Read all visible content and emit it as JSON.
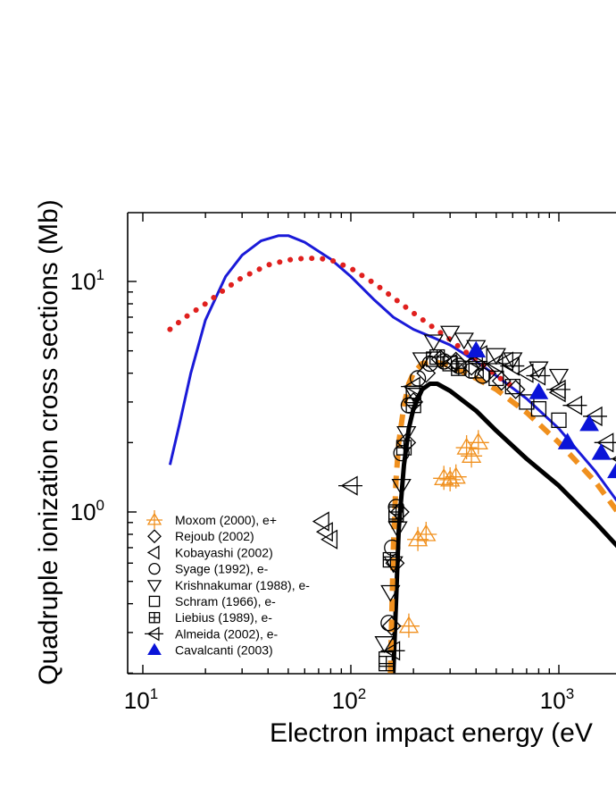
{
  "chart_data": {
    "type": "scatter",
    "xlabel": "Electron impact energy (eV",
    "ylabel": "Quadruple ionization cross sections (Mb)",
    "x_scale": "log",
    "y_scale": "log",
    "xlim": [
      8.5,
      2000
    ],
    "ylim": [
      0.2,
      20
    ],
    "x_ticks": [
      {
        "value": 10,
        "base": "10",
        "exp": "1"
      },
      {
        "value": 100,
        "base": "10",
        "exp": "2"
      },
      {
        "value": 1000,
        "base": "10",
        "exp": "3"
      }
    ],
    "y_ticks": [
      {
        "value": 1,
        "base": "10",
        "exp": "0"
      },
      {
        "value": 10,
        "base": "10",
        "exp": "1"
      }
    ],
    "legend": [
      {
        "label": "Moxom (2000), e+",
        "marker": "triangle-up-cross",
        "color": "#f0901e"
      },
      {
        "label": "Rejoub (2002)",
        "marker": "diamond",
        "color": "#000000"
      },
      {
        "label": "Kobayashi (2002)",
        "marker": "triangle-left",
        "color": "#000000"
      },
      {
        "label": "Syage (1992), e-",
        "marker": "circle",
        "color": "#000000"
      },
      {
        "label": "Krishnakumar (1988), e-",
        "marker": "triangle-down",
        "color": "#000000"
      },
      {
        "label": "Schram (1966), e-",
        "marker": "square",
        "color": "#000000"
      },
      {
        "label": "Liebius (1989), e-",
        "marker": "square-plus",
        "color": "#000000"
      },
      {
        "label": "Almeida (2002), e-",
        "marker": "triangle-left-cross",
        "color": "#000000"
      },
      {
        "label": "Cavalcanti (2003)",
        "marker": "triangle-up-filled",
        "color": "#0a14d8"
      }
    ],
    "curves": [
      {
        "name": "blue-solid-curve",
        "color": "#1a1ad8",
        "style": "solid",
        "x": [
          13.5,
          15,
          17,
          20,
          25,
          30,
          37,
          45,
          50,
          60,
          80,
          100,
          130,
          160,
          200,
          250,
          300,
          400,
          500,
          700,
          1000,
          1500,
          2000
        ],
        "y": [
          1.6,
          2.4,
          4.0,
          6.8,
          10.5,
          13.0,
          15.0,
          15.8,
          15.8,
          14.8,
          12.5,
          10.5,
          8.3,
          7.0,
          6.2,
          5.7,
          5.3,
          4.5,
          3.9,
          3.1,
          2.3,
          1.5,
          1.05
        ]
      },
      {
        "name": "red-dotted-curve",
        "color": "#e0201e",
        "style": "dotted",
        "x": [
          13.5,
          16,
          20,
          25,
          30,
          40,
          50,
          60,
          70,
          80,
          100,
          130,
          160,
          200,
          250,
          300,
          350,
          400,
          500,
          600
        ],
        "y": [
          6.2,
          7.0,
          8.0,
          9.3,
          10.4,
          11.8,
          12.4,
          12.6,
          12.6,
          12.4,
          11.4,
          9.8,
          8.5,
          7.3,
          6.3,
          5.6,
          5.0,
          4.6,
          3.9,
          3.5
        ]
      },
      {
        "name": "black-thick-curve",
        "color": "#000000",
        "style": "solid",
        "x": [
          160,
          170,
          180,
          190,
          200,
          220,
          240,
          260,
          300,
          400,
          500,
          700,
          1000,
          1500,
          2000
        ],
        "y": [
          0.2,
          0.85,
          1.6,
          2.3,
          2.8,
          3.4,
          3.6,
          3.6,
          3.35,
          2.75,
          2.25,
          1.7,
          1.3,
          0.9,
          0.68
        ]
      },
      {
        "name": "orange-dashed-curve",
        "color": "#f0901e",
        "style": "dashed",
        "x": [
          155,
          160,
          165,
          170,
          180,
          190,
          200,
          220,
          250,
          300,
          400,
          500,
          700,
          1000,
          1500,
          2000
        ],
        "y": [
          0.2,
          0.7,
          1.4,
          2.0,
          2.9,
          3.6,
          4.0,
          4.4,
          4.5,
          4.3,
          3.8,
          3.4,
          2.7,
          2.0,
          1.35,
          0.95
        ]
      }
    ],
    "series": [
      {
        "name": "Moxom (2000), e+",
        "marker": "triangle-up-cross",
        "color": "#f0901e",
        "x": [
          190,
          210,
          230,
          280,
          300,
          320,
          360,
          380,
          410
        ],
        "y": [
          0.32,
          0.76,
          0.8,
          1.4,
          1.38,
          1.42,
          1.9,
          1.75,
          2.0
        ]
      },
      {
        "name": "Rejoub (2002)",
        "marker": "diamond",
        "color": "#000000",
        "x": [
          157,
          163,
          172,
          185,
          200,
          230,
          270,
          320,
          380,
          450,
          530,
          620
        ],
        "y": [
          0.32,
          0.6,
          1.0,
          2.0,
          3.0,
          4.0,
          4.6,
          4.5,
          4.3,
          4.0,
          3.7,
          3.4
        ]
      },
      {
        "name": "Kobayashi (2002)",
        "marker": "triangle-left",
        "color": "#000000",
        "x": [
          73,
          76,
          80,
          420,
          560,
          700,
          1000
        ],
        "y": [
          0.91,
          0.82,
          0.76,
          4.8,
          4.5,
          4.0,
          3.3
        ]
      },
      {
        "name": "Syage (1992), e-",
        "marker": "circle",
        "color": "#000000",
        "x": [
          152,
          158,
          165,
          175,
          190,
          210,
          240,
          280,
          330,
          380,
          430
        ],
        "y": [
          0.33,
          0.7,
          1.05,
          1.8,
          2.9,
          3.8,
          4.4,
          4.5,
          4.3,
          4.1,
          3.9
        ]
      },
      {
        "name": "Krishnakumar (1988), e-",
        "marker": "triangle-down",
        "color": "#000000",
        "x": [
          145,
          155,
          160,
          168,
          175,
          185,
          200,
          220,
          250,
          300,
          350,
          400,
          500,
          600,
          800,
          1000
        ],
        "y": [
          0.27,
          0.45,
          0.6,
          0.85,
          1.3,
          2.2,
          3.3,
          4.6,
          5.5,
          6.0,
          5.6,
          5.2,
          4.8,
          4.6,
          4.2,
          3.9
        ]
      },
      {
        "name": "Schram (1966), e-",
        "marker": "square",
        "color": "#000000",
        "x": [
          148,
          165,
          200,
          250,
          300,
          400,
          500,
          600,
          700,
          800,
          1000
        ],
        "y": [
          0.23,
          0.98,
          3.2,
          4.6,
          4.4,
          4.1,
          3.8,
          3.5,
          3.0,
          2.8,
          2.5
        ]
      },
      {
        "name": "Liebius (1989), e-",
        "marker": "square-plus",
        "color": "#000000",
        "x": [
          148,
          155,
          165,
          180,
          200,
          260,
          330
        ],
        "y": [
          0.22,
          0.62,
          1.0,
          1.9,
          2.9,
          4.7,
          4.2
        ]
      },
      {
        "name": "Almeida (2002), e-",
        "marker": "triangle-left-cross",
        "color": "#000000",
        "x": [
          100,
          160,
          200,
          300,
          400,
          500,
          600,
          800,
          1000,
          1200,
          1500,
          1700,
          2000
        ],
        "y": [
          1.3,
          0.25,
          3.5,
          4.4,
          4.5,
          4.4,
          4.3,
          3.9,
          3.4,
          2.9,
          2.6,
          2.0,
          1.7
        ]
      },
      {
        "name": "Cavalcanti (2003)",
        "marker": "triangle-up-filled",
        "color": "#0a14d8",
        "x": [
          400,
          800,
          1100,
          1400,
          1600,
          1900
        ],
        "y": [
          5.0,
          3.3,
          2.0,
          2.4,
          1.8,
          1.5
        ]
      }
    ]
  }
}
